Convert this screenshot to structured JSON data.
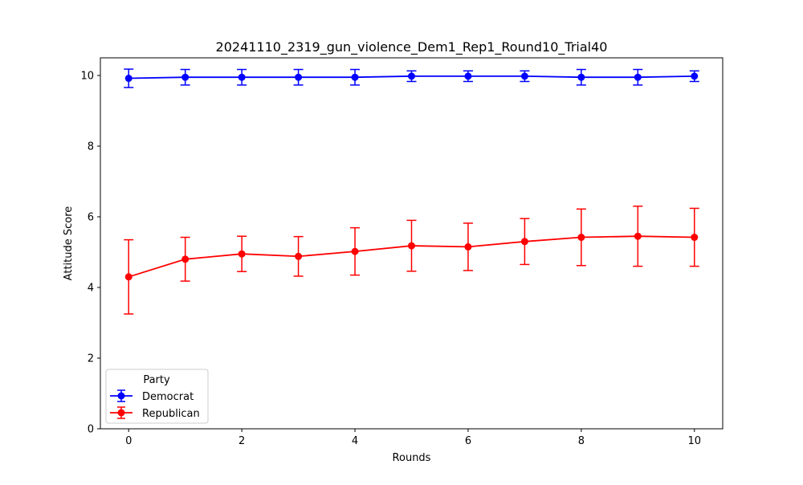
{
  "chart_data": {
    "type": "line",
    "title": "20241110_2319_gun_violence_Dem1_Rep1_Round10_Trial40",
    "xlabel": "Rounds",
    "ylabel": "Attitude Score",
    "xlim": [
      -0.5,
      10.5
    ],
    "ylim": [
      0,
      10.5
    ],
    "xticks": [
      0,
      2,
      4,
      6,
      8,
      10
    ],
    "yticks": [
      0,
      2,
      4,
      6,
      8,
      10
    ],
    "grid": false,
    "legend": {
      "title": "Party",
      "placement": "lower-left"
    },
    "x": [
      0,
      1,
      2,
      3,
      4,
      5,
      6,
      7,
      8,
      9,
      10
    ],
    "series": [
      {
        "name": "Democrat",
        "color": "#0000ff",
        "values": [
          9.92,
          9.95,
          9.95,
          9.95,
          9.95,
          9.98,
          9.98,
          9.98,
          9.95,
          9.95,
          9.98
        ],
        "error": [
          0.26,
          0.22,
          0.22,
          0.22,
          0.22,
          0.15,
          0.15,
          0.15,
          0.22,
          0.22,
          0.15
        ]
      },
      {
        "name": "Republican",
        "color": "#ff0000",
        "values": [
          4.3,
          4.8,
          4.95,
          4.88,
          5.02,
          5.18,
          5.15,
          5.3,
          5.42,
          5.45,
          5.42
        ],
        "error": [
          1.05,
          0.62,
          0.5,
          0.56,
          0.67,
          0.72,
          0.67,
          0.65,
          0.8,
          0.85,
          0.82
        ]
      }
    ]
  }
}
